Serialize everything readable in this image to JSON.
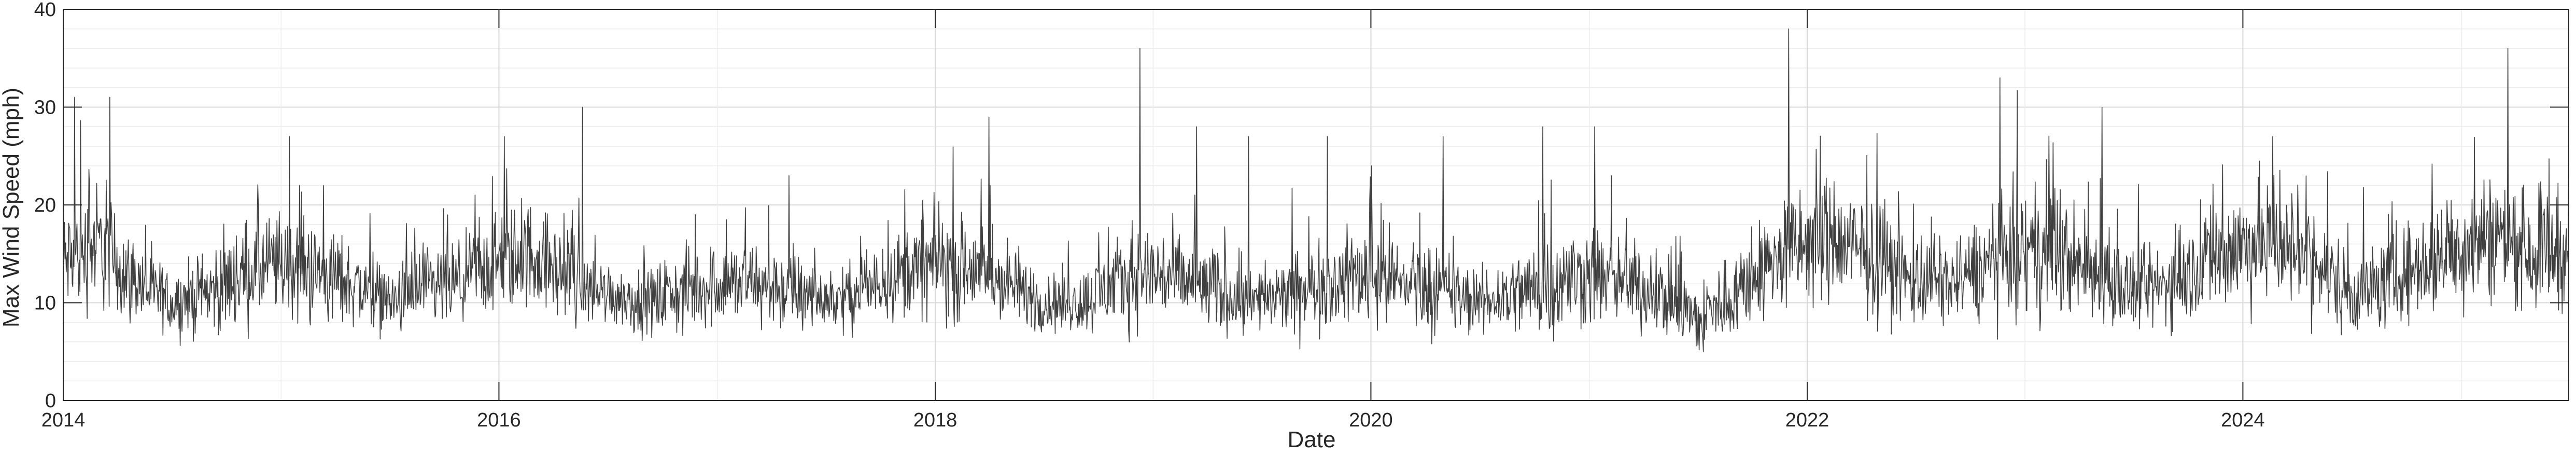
{
  "chart_data": {
    "type": "line",
    "title": "",
    "xlabel": "Date",
    "ylabel": "Max Wind Speed (mph)",
    "ylim": [
      0,
      40
    ],
    "xlim": [
      "2014-01-01",
      "2025-06-30"
    ],
    "yticks": [
      "0",
      "10",
      "20",
      "30",
      "40"
    ],
    "xticks": [
      {
        "date": "2014-01-01",
        "label": "2014"
      },
      {
        "date": "2016-01-01",
        "label": "2016"
      },
      {
        "date": "2018-01-01",
        "label": "2018"
      },
      {
        "date": "2020-01-01",
        "label": "2020"
      },
      {
        "date": "2022-01-01",
        "label": "2022"
      },
      {
        "date": "2024-01-01",
        "label": "2024"
      }
    ],
    "grid": true,
    "minor_grid": true,
    "series": [
      {
        "color": "#404040",
        "x": [
          "2014-01-01",
          "2014-03-01",
          "2014-05-01",
          "2014-07-01",
          "2014-09-01",
          "2014-11-01",
          "2015-01-01",
          "2015-03-01",
          "2015-05-01",
          "2015-07-01",
          "2015-09-01",
          "2015-11-01",
          "2016-01-01",
          "2016-03-01",
          "2016-05-01",
          "2016-07-01",
          "2016-09-01",
          "2016-11-01",
          "2017-01-01",
          "2017-03-01",
          "2017-05-01",
          "2017-07-01",
          "2017-09-01",
          "2017-11-01",
          "2018-01-01",
          "2018-03-01",
          "2018-05-01",
          "2018-07-01",
          "2018-09-01",
          "2018-11-01",
          "2019-01-01",
          "2019-03-01",
          "2019-05-01",
          "2019-07-01",
          "2019-09-01",
          "2019-11-01",
          "2020-01-01",
          "2020-03-01",
          "2020-05-01",
          "2020-07-01",
          "2020-09-01",
          "2020-11-01",
          "2021-01-01",
          "2021-03-01",
          "2021-05-01",
          "2021-07-01",
          "2021-09-01",
          "2021-11-01",
          "2022-01-01",
          "2022-03-01",
          "2022-05-01",
          "2022-07-01",
          "2022-09-01",
          "2022-11-01",
          "2023-01-01",
          "2023-03-01",
          "2023-05-01",
          "2023-07-01",
          "2023-09-01",
          "2023-11-01",
          "2024-01-01",
          "2024-03-01",
          "2024-05-01",
          "2024-07-01",
          "2024-09-01",
          "2024-11-01",
          "2025-01-01",
          "2025-03-01",
          "2025-05-01"
        ],
        "y": [
          14,
          16,
          12,
          10,
          11,
          13,
          14,
          13,
          12,
          10,
          11,
          12,
          14,
          15,
          12,
          11,
          10,
          11,
          12,
          12,
          11,
          10,
          11,
          13,
          14,
          13,
          12,
          10,
          10,
          12,
          13,
          12,
          11,
          10,
          11,
          12,
          13,
          12,
          11,
          10,
          11,
          12,
          13,
          12,
          11,
          8,
          11,
          14,
          16,
          16,
          14,
          12,
          12,
          14,
          15,
          15,
          13,
          11,
          12,
          14,
          16,
          16,
          14,
          11,
          12,
          14,
          16,
          17,
          15
        ],
        "spread": [
          5,
          6,
          4,
          3,
          4,
          5,
          5,
          5,
          4,
          3,
          4,
          4,
          5,
          5,
          4,
          3,
          3,
          4,
          4,
          4,
          4,
          3,
          3,
          4,
          5,
          5,
          4,
          3,
          3,
          4,
          5,
          4,
          4,
          3,
          4,
          4,
          5,
          4,
          4,
          3,
          4,
          5,
          5,
          4,
          4,
          4,
          4,
          5,
          6,
          6,
          5,
          4,
          4,
          5,
          6,
          6,
          5,
          4,
          4,
          5,
          6,
          6,
          5,
          4,
          4,
          5,
          6,
          6,
          5
        ],
        "peaks": [
          {
            "date": "2014-01-20",
            "value": 31
          },
          {
            "date": "2014-03-20",
            "value": 31
          },
          {
            "date": "2015-01-15",
            "value": 27
          },
          {
            "date": "2016-01-10",
            "value": 27
          },
          {
            "date": "2016-05-20",
            "value": 30
          },
          {
            "date": "2017-05-01",
            "value": 23
          },
          {
            "date": "2018-04-01",
            "value": 29
          },
          {
            "date": "2018-12-10",
            "value": 36
          },
          {
            "date": "2019-03-15",
            "value": 28
          },
          {
            "date": "2019-06-10",
            "value": 27
          },
          {
            "date": "2019-10-20",
            "value": 27
          },
          {
            "date": "2020-05-01",
            "value": 27
          },
          {
            "date": "2020-10-15",
            "value": 28
          },
          {
            "date": "2021-01-10",
            "value": 28
          },
          {
            "date": "2021-12-01",
            "value": 38
          },
          {
            "date": "2022-11-20",
            "value": 33
          },
          {
            "date": "2023-05-10",
            "value": 30
          },
          {
            "date": "2024-02-20",
            "value": 27
          },
          {
            "date": "2025-03-20",
            "value": 36
          }
        ]
      }
    ]
  }
}
